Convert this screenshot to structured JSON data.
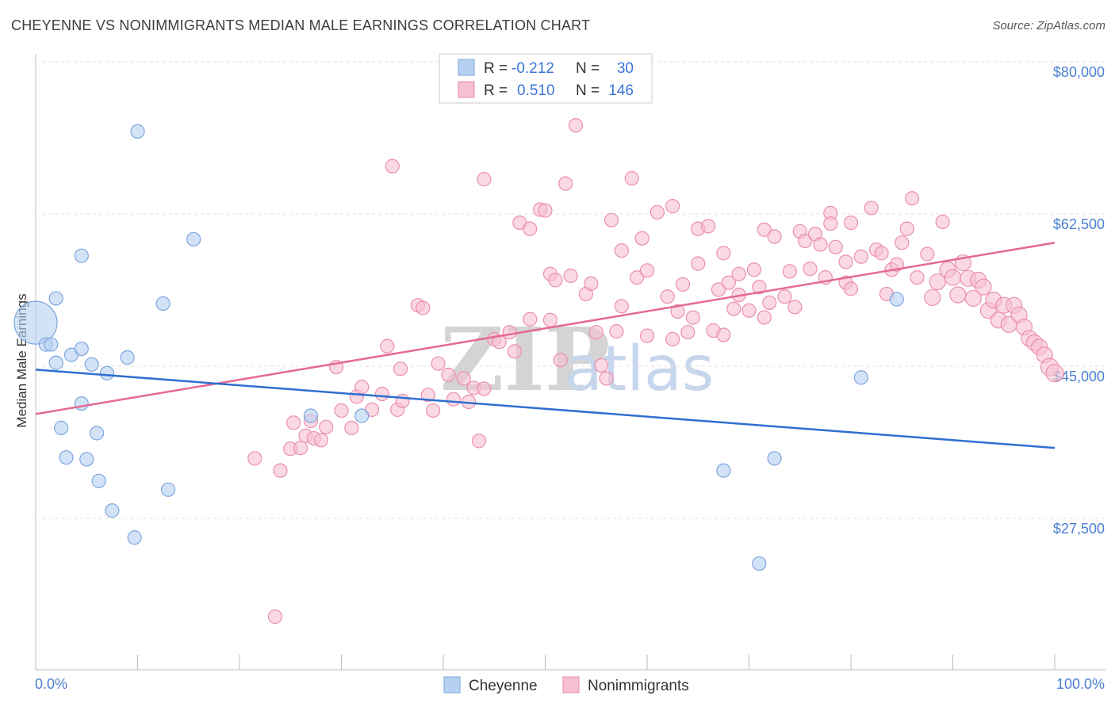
{
  "title": "CHEYENNE VS NONIMMIGRANTS MEDIAN MALE EARNINGS CORRELATION CHART",
  "source": "Source: ZipAtlas.com",
  "watermark": {
    "part1": "ZIP",
    "part2": "atlas"
  },
  "legend": {
    "rows": [
      {
        "r_label": "R =",
        "r_value": "-0.212",
        "n_label": "N =",
        "n_value": "30"
      },
      {
        "r_label": "R =",
        "r_value": "0.510",
        "n_label": "N =",
        "n_value": "146"
      }
    ]
  },
  "bottom_legend": [
    "Cheyenne",
    "Nonimmigrants"
  ],
  "colors": {
    "cheyenne_fill": "#b6d0f2",
    "cheyenne_stroke": "#7ea6dd",
    "cheyenne_line": "#2e6fd1",
    "nonimm_fill": "#f7bfd0",
    "nonimm_stroke": "#ea8fae",
    "nonimm_line": "#e46a95",
    "tick_text": "#4a7fd0"
  },
  "chart_data": {
    "type": "scatter",
    "title": "CHEYENNE VS NONIMMIGRANTS MEDIAN MALE EARNINGS CORRELATION CHART",
    "xlabel": "",
    "ylabel": "Median Male Earnings",
    "xlim": [
      0,
      100
    ],
    "ylim": [
      10000,
      82500
    ],
    "x_tick_labels": [
      "0.0%",
      "100.0%"
    ],
    "y_ticks": [
      27500,
      45000,
      62500,
      80000
    ],
    "y_tick_labels": [
      "$27,500",
      "$45,000",
      "$62,500",
      "$80,000"
    ],
    "series": [
      {
        "name": "Cheyenne",
        "r": -0.212,
        "n": 30,
        "trend": {
          "x": [
            0,
            100
          ],
          "y": [
            44600,
            35600
          ]
        },
        "points": [
          [
            0,
            50000,
            36
          ],
          [
            1,
            47500,
            12
          ],
          [
            1.5,
            47500,
            12
          ],
          [
            2,
            45400,
            12
          ],
          [
            2,
            52800,
            12
          ],
          [
            3.5,
            46300,
            12
          ],
          [
            4.5,
            57700,
            12
          ],
          [
            4.5,
            40700,
            12
          ],
          [
            2.5,
            37900,
            12
          ],
          [
            4.5,
            47000,
            12
          ],
          [
            5.5,
            45200,
            12
          ],
          [
            7,
            44200,
            12
          ],
          [
            9,
            46000,
            12
          ],
          [
            3,
            34500,
            12
          ],
          [
            5,
            34300,
            12
          ],
          [
            6,
            37300,
            12
          ],
          [
            6.2,
            31800,
            12
          ],
          [
            7.5,
            28400,
            12
          ],
          [
            9.7,
            25300,
            12
          ],
          [
            10,
            72000,
            12
          ],
          [
            12.5,
            52200,
            12
          ],
          [
            13,
            30800,
            12
          ],
          [
            15.5,
            59600,
            12
          ],
          [
            27,
            39300,
            12
          ],
          [
            32,
            39300,
            12
          ],
          [
            67.5,
            33000,
            12
          ],
          [
            71,
            22300,
            12
          ],
          [
            72.5,
            34400,
            12
          ],
          [
            81,
            43700,
            12
          ],
          [
            84.5,
            52700,
            12
          ]
        ]
      },
      {
        "name": "Nonimmigrants",
        "r": 0.51,
        "n": 146,
        "trend": {
          "x": [
            0,
            100
          ],
          "y": [
            39500,
            59200
          ]
        },
        "points": [
          [
            21.5,
            34400,
            12
          ],
          [
            23.5,
            16200,
            12
          ],
          [
            24,
            33000,
            12
          ],
          [
            25,
            35500,
            12
          ],
          [
            25.3,
            38500,
            12
          ],
          [
            26,
            35600,
            12
          ],
          [
            26.5,
            37000,
            12
          ],
          [
            27,
            38700,
            12
          ],
          [
            27.3,
            36700,
            12
          ],
          [
            28,
            36500,
            12
          ],
          [
            28.5,
            38000,
            12
          ],
          [
            29.5,
            44900,
            12
          ],
          [
            30,
            39900,
            12
          ],
          [
            31,
            37900,
            12
          ],
          [
            31.5,
            41500,
            12
          ],
          [
            32,
            42600,
            12
          ],
          [
            33,
            40000,
            12
          ],
          [
            34,
            41800,
            12
          ],
          [
            34.5,
            47300,
            12
          ],
          [
            35,
            68000,
            12
          ],
          [
            35.5,
            40000,
            12
          ],
          [
            35.8,
            44700,
            12
          ],
          [
            36,
            41000,
            12
          ],
          [
            37.5,
            52000,
            12
          ],
          [
            38,
            51700,
            12
          ],
          [
            38.5,
            41700,
            12
          ],
          [
            39,
            39900,
            12
          ],
          [
            39.5,
            45300,
            12
          ],
          [
            40.5,
            44000,
            12
          ],
          [
            41,
            41200,
            12
          ],
          [
            42,
            43600,
            12
          ],
          [
            42.5,
            40900,
            12
          ],
          [
            43,
            42500,
            12
          ],
          [
            43.5,
            36400,
            12
          ],
          [
            44,
            42400,
            12
          ],
          [
            44,
            66500,
            12
          ],
          [
            45,
            48100,
            12
          ],
          [
            45.5,
            47800,
            12
          ],
          [
            46.5,
            48900,
            12
          ],
          [
            47.5,
            61500,
            12
          ],
          [
            47,
            46700,
            12
          ],
          [
            48.5,
            60800,
            12
          ],
          [
            48.5,
            50400,
            12
          ],
          [
            49.5,
            63000,
            12
          ],
          [
            50,
            62900,
            12
          ],
          [
            50.5,
            55600,
            12
          ],
          [
            50.5,
            50300,
            12
          ],
          [
            51,
            54900,
            12
          ],
          [
            51.5,
            45700,
            12
          ],
          [
            52.5,
            55400,
            12
          ],
          [
            52,
            66000,
            12
          ],
          [
            53,
            72700,
            12
          ],
          [
            54,
            53300,
            12
          ],
          [
            54.5,
            54500,
            12
          ],
          [
            55,
            48900,
            12
          ],
          [
            55.5,
            45100,
            12
          ],
          [
            56,
            43600,
            12
          ],
          [
            56.5,
            61800,
            12
          ],
          [
            57,
            49000,
            12
          ],
          [
            57.5,
            51900,
            12
          ],
          [
            57.5,
            58300,
            12
          ],
          [
            58.5,
            66600,
            12
          ],
          [
            59,
            55200,
            12
          ],
          [
            59.5,
            59700,
            12
          ],
          [
            60,
            56000,
            12
          ],
          [
            60,
            48500,
            12
          ],
          [
            61,
            62700,
            12
          ],
          [
            62,
            53000,
            12
          ],
          [
            62.5,
            63400,
            12
          ],
          [
            63,
            51300,
            12
          ],
          [
            62.5,
            48100,
            12
          ],
          [
            63.5,
            54400,
            12
          ],
          [
            64,
            48900,
            12
          ],
          [
            64.5,
            50600,
            12
          ],
          [
            65,
            60800,
            12
          ],
          [
            65,
            56800,
            12
          ],
          [
            66,
            61100,
            12
          ],
          [
            66.5,
            49100,
            12
          ],
          [
            67.5,
            48600,
            12
          ],
          [
            67,
            53800,
            12
          ],
          [
            67.5,
            58000,
            12
          ],
          [
            68,
            54600,
            12
          ],
          [
            68.5,
            51600,
            12
          ],
          [
            69,
            55600,
            12
          ],
          [
            69,
            53200,
            12
          ],
          [
            70,
            51400,
            12
          ],
          [
            70.5,
            56100,
            12
          ],
          [
            71,
            54100,
            12
          ],
          [
            71.5,
            50600,
            12
          ],
          [
            71.5,
            60700,
            12
          ],
          [
            72,
            52300,
            12
          ],
          [
            72.5,
            59900,
            12
          ],
          [
            73.5,
            53000,
            12
          ],
          [
            74,
            55900,
            12
          ],
          [
            74.5,
            51800,
            12
          ],
          [
            75,
            60500,
            12
          ],
          [
            75.5,
            59400,
            12
          ],
          [
            76,
            56200,
            12
          ],
          [
            76.5,
            60200,
            12
          ],
          [
            77,
            59000,
            12
          ],
          [
            77.5,
            55200,
            12
          ],
          [
            78,
            62600,
            12
          ],
          [
            78,
            61400,
            12
          ],
          [
            78.5,
            58700,
            12
          ],
          [
            79.5,
            57000,
            12
          ],
          [
            79.5,
            54600,
            12
          ],
          [
            80,
            61500,
            12
          ],
          [
            80,
            53900,
            12
          ],
          [
            81,
            57600,
            12
          ],
          [
            82,
            63200,
            12
          ],
          [
            82.5,
            58400,
            12
          ],
          [
            83,
            58000,
            12
          ],
          [
            83.5,
            53300,
            12
          ],
          [
            84,
            56100,
            12
          ],
          [
            84.5,
            56700,
            12
          ],
          [
            85,
            59200,
            12
          ],
          [
            85.5,
            60800,
            12
          ],
          [
            86,
            64300,
            12
          ],
          [
            86.5,
            55200,
            12
          ],
          [
            87.5,
            57900,
            12
          ],
          [
            88,
            52900,
            14
          ],
          [
            88.5,
            54700,
            14
          ],
          [
            89,
            61600,
            12
          ],
          [
            89.5,
            56100,
            14
          ],
          [
            90,
            55200,
            14
          ],
          [
            90.5,
            53200,
            14
          ],
          [
            91,
            56900,
            14
          ],
          [
            91.5,
            55100,
            14
          ],
          [
            92,
            52800,
            14
          ],
          [
            92.5,
            54900,
            14
          ],
          [
            93,
            54100,
            14
          ],
          [
            93.5,
            51400,
            14
          ],
          [
            94,
            52600,
            14
          ],
          [
            94.5,
            50300,
            14
          ],
          [
            95,
            52000,
            14
          ],
          [
            95.5,
            49800,
            14
          ],
          [
            96,
            52000,
            14
          ],
          [
            96.5,
            50900,
            14
          ],
          [
            97,
            49500,
            14
          ],
          [
            97.5,
            48200,
            14
          ],
          [
            98,
            47700,
            14
          ],
          [
            98.5,
            47200,
            14
          ],
          [
            99,
            46300,
            14
          ],
          [
            99.5,
            44900,
            16
          ],
          [
            100,
            44200,
            16
          ]
        ]
      }
    ]
  }
}
